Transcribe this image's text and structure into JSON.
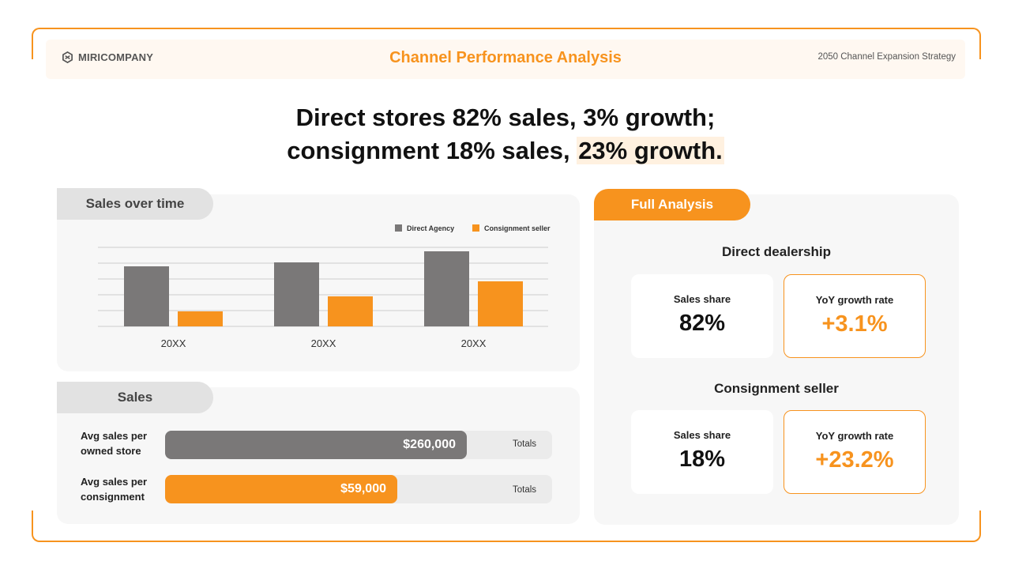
{
  "header": {
    "brand": "MIRICOMPANY",
    "title": "Channel Performance Analysis",
    "strategy": "2050 Channel Expansion Strategy"
  },
  "headline": {
    "line1": "Direct stores 82% sales, 3% growth;",
    "line2_prefix": "consignment 18% sales, ",
    "line2_highlight": "23% growth."
  },
  "sales_over_time": {
    "tab_label": "Sales over time"
  },
  "chart_data": {
    "type": "bar",
    "categories": [
      "20XX",
      "20XX",
      "20XX"
    ],
    "series": [
      {
        "name": "Direct Agency",
        "color": "#7A7878",
        "values": [
          76,
          81,
          95
        ]
      },
      {
        "name": "Consignment seller",
        "color": "#F7931E",
        "values": [
          19,
          38,
          57
        ]
      }
    ],
    "ylim": [
      0,
      100
    ],
    "grid": true,
    "legend": "top-right",
    "title": "",
    "xlabel": "",
    "ylabel": ""
  },
  "sales": {
    "tab_label": "Sales",
    "rows": [
      {
        "label_line1": "Avg sales per",
        "label_line2": "owned store",
        "value": "$260,000",
        "totals": "Totals",
        "fill_pct": 78,
        "color": "#7A7878"
      },
      {
        "label_line1": "Avg sales per",
        "label_line2": "consignment",
        "value": "$59,000",
        "totals": "Totals",
        "fill_pct": 60,
        "color": "#F7931E"
      }
    ]
  },
  "full_analysis": {
    "tab_label": "Full Analysis",
    "direct": {
      "title": "Direct dealership",
      "share_label": "Sales share",
      "share_value": "82%",
      "growth_label": "YoY growth rate",
      "growth_value": "+3.1%"
    },
    "consignment": {
      "title": "Consignment seller",
      "share_label": "Sales share",
      "share_value": "18%",
      "growth_label": "YoY growth rate",
      "growth_value": "+23.2%"
    }
  },
  "colors": {
    "accent": "#F7931E",
    "gray_bar": "#7A7878"
  }
}
